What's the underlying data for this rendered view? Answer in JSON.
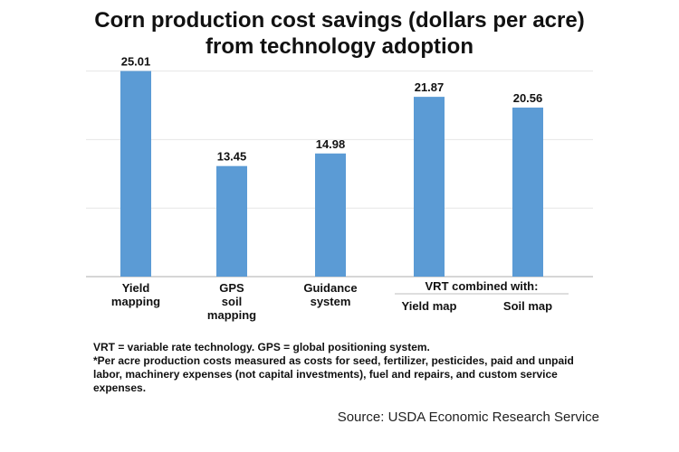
{
  "chart_data": {
    "type": "bar",
    "title": "Corn production cost savings (dollars per acre) from technology adoption",
    "title_lines": [
      "Corn production cost savings (dollars per acre)",
      "from technology adoption"
    ],
    "categories": [
      {
        "lines": [
          "Yield",
          "mapping"
        ]
      },
      {
        "lines": [
          "GPS",
          "soil",
          "mapping"
        ]
      },
      {
        "lines": [
          "Guidance",
          "system"
        ]
      },
      {
        "lines": [
          "Yield map"
        ]
      },
      {
        "lines": [
          "Soil map"
        ]
      }
    ],
    "values": [
      25.01,
      13.45,
      14.98,
      21.87,
      20.56
    ],
    "data_labels": [
      "25.01",
      "13.45",
      "14.98",
      "21.87",
      "20.56"
    ],
    "group_label": "VRT combined with:",
    "group_members": [
      3,
      4
    ],
    "ylim": [
      0,
      26.5
    ],
    "gridlines": [
      0,
      8.33,
      16.67,
      25
    ],
    "grid": true,
    "bar_color": "#5b9bd5",
    "xlabel": "",
    "ylabel": ""
  },
  "footnote": {
    "lines": [
      "VRT = variable rate technology. GPS = global positioning system.",
      "*Per acre production costs measured as costs for seed, fertilizer, pesticides, paid and unpaid",
      "labor, machinery expenses (not capital investments), fuel and repairs, and custom service",
      "expenses."
    ]
  },
  "source": "Source: USDA Economic Research Service"
}
